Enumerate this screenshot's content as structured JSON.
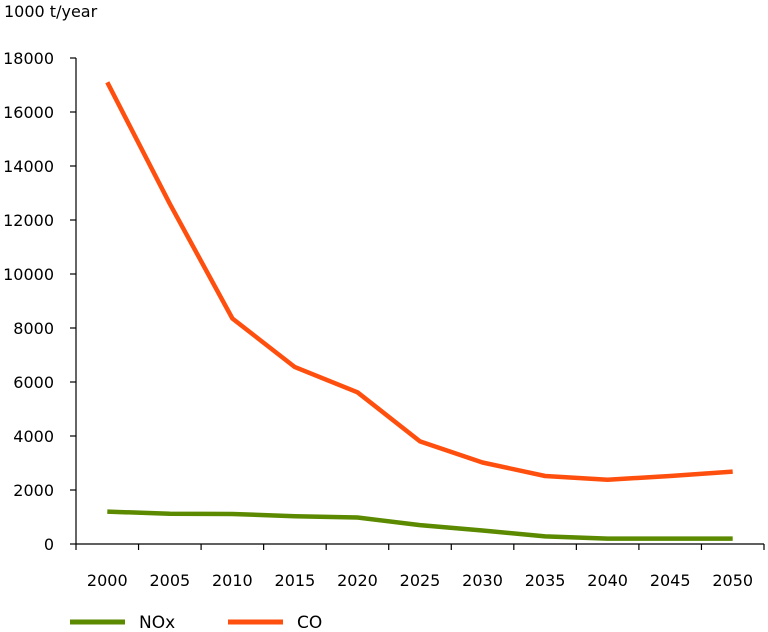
{
  "chart_data": {
    "type": "line",
    "ylabel": "1000 t/year",
    "x": [
      2000,
      2005,
      2010,
      2015,
      2020,
      2025,
      2030,
      2035,
      2040,
      2045,
      2050
    ],
    "x_tick_labels": [
      "2000",
      "2005",
      "2010",
      "2015",
      "2020",
      "2025",
      "2030",
      "2035",
      "2040",
      "2045",
      "2050"
    ],
    "y_tick_labels": [
      "0",
      "2000",
      "4000",
      "6000",
      "8000",
      "10000",
      "12000",
      "14000",
      "16000",
      "18000"
    ],
    "ylim": [
      0,
      18000
    ],
    "grid": false,
    "legend_position": "bottom",
    "series": [
      {
        "name": "NOx",
        "color": "#5b8a00",
        "values": [
          1200,
          1120,
          1110,
          1030,
          980,
          700,
          500,
          280,
          200,
          200,
          200
        ]
      },
      {
        "name": "CO",
        "color": "#ff4f0f",
        "values": [
          17100,
          12600,
          8350,
          6550,
          5620,
          3800,
          3020,
          2520,
          2380,
          2520,
          2680
        ]
      }
    ]
  }
}
